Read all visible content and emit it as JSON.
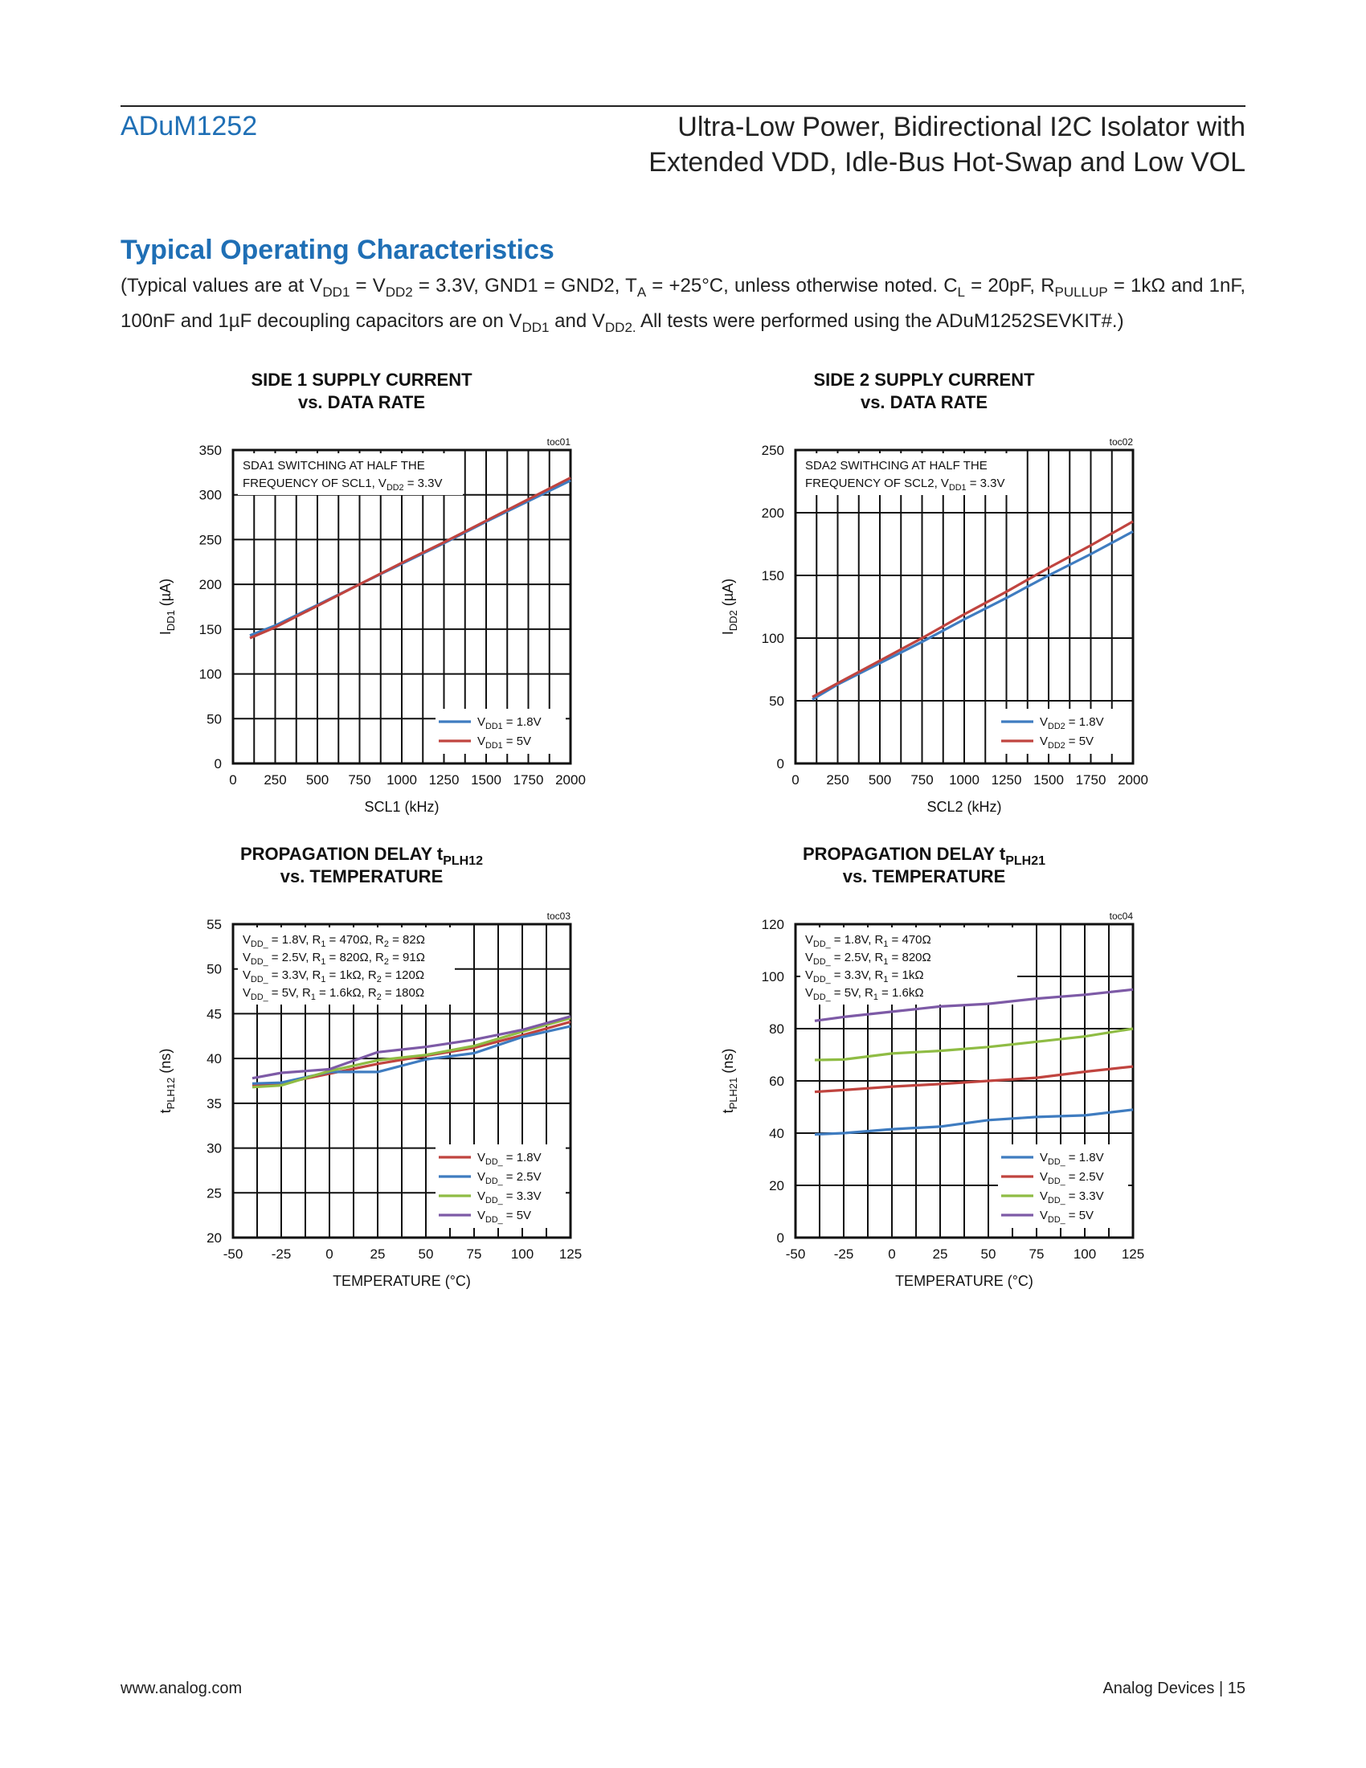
{
  "header": {
    "part_number": "ADuM1252",
    "title_line1": "Ultra-Low Power, Bidirectional I2C Isolator with",
    "title_line2": "Extended VDD, Idle-Bus Hot-Swap and Low VOL"
  },
  "section": {
    "heading": "Typical Operating Characteristics",
    "conditions_parts": [
      "(Typical values are at V",
      "DD1",
      " = V",
      "DD2",
      " = 3.3V, GND1 = GND2, T",
      "A",
      " = +25°C, unless otherwise noted. C",
      "L",
      " = 20pF, R",
      "PULLUP",
      " = 1kΩ and 1nF, 100nF and 1µF decoupling capacitors are on V",
      "DD1",
      " and V",
      "DD2.",
      " All tests were performed using the ADuM1252SEVKIT#.)"
    ]
  },
  "footer": {
    "left": "www.analog.com",
    "right": "Analog Devices | 15"
  },
  "chart_data": [
    {
      "id": "toc01",
      "type": "line",
      "title": [
        "SIDE 1 SUPPLY CURRENT",
        "vs. DATA RATE"
      ],
      "tag": "toc01",
      "xlabel": "SCL1 (kHz)",
      "ylabel": [
        [
          "I",
          ""
        ],
        [
          "DD1",
          "sub"
        ],
        [
          " (µA)",
          ""
        ]
      ],
      "xlim": [
        0,
        2000
      ],
      "ylim": [
        0,
        350
      ],
      "xticks": [
        0,
        250,
        500,
        750,
        1000,
        1250,
        1500,
        1750,
        2000
      ],
      "yticks": [
        0,
        50,
        100,
        150,
        200,
        250,
        300,
        350
      ],
      "grid": true,
      "annotation": [
        [
          [
            "SDA1 SWITCHING AT HALF THE",
            ""
          ]
        ],
        [
          [
            "FREQUENCY OF SCL1, V",
            ""
          ],
          [
            "DD2",
            "sub"
          ],
          [
            " = 3.3V",
            ""
          ]
        ]
      ],
      "legend_position": "bottom-right",
      "series": [
        {
          "name": [
            [
              "V",
              ""
            ],
            [
              "DD1",
              "sub"
            ],
            [
              " = 1.8V",
              ""
            ]
          ],
          "color": "#3f7cc0",
          "x": [
            100,
            250,
            500,
            750,
            1000,
            1250,
            1500,
            1750,
            2000
          ],
          "y": [
            143,
            154,
            177,
            200,
            223,
            246,
            270,
            293,
            316
          ]
        },
        {
          "name": [
            [
              "V",
              ""
            ],
            [
              "DD1",
              "sub"
            ],
            [
              " = 5V",
              ""
            ]
          ],
          "color": "#c0443f",
          "x": [
            100,
            250,
            500,
            750,
            1000,
            1250,
            1500,
            1750,
            2000
          ],
          "y": [
            140,
            152,
            176,
            200,
            224,
            247,
            271,
            295,
            319
          ]
        }
      ]
    },
    {
      "id": "toc02",
      "type": "line",
      "title": [
        "SIDE 2 SUPPLY CURRENT",
        "vs. DATA RATE"
      ],
      "tag": "toc02",
      "xlabel": "SCL2 (kHz)",
      "ylabel": [
        [
          "I",
          ""
        ],
        [
          "DD2",
          "sub"
        ],
        [
          " (µA)",
          ""
        ]
      ],
      "xlim": [
        0,
        2000
      ],
      "ylim": [
        0,
        250
      ],
      "xticks": [
        0,
        250,
        500,
        750,
        1000,
        1250,
        1500,
        1750,
        2000
      ],
      "yticks": [
        0,
        50,
        100,
        150,
        200,
        250
      ],
      "grid": true,
      "annotation": [
        [
          [
            "SDA2 SWITHCING AT HALF THE",
            ""
          ]
        ],
        [
          [
            "FREQUENCY OF SCL2, V",
            ""
          ],
          [
            "DD1",
            "sub"
          ],
          [
            " = 3.3V",
            ""
          ]
        ]
      ],
      "legend_position": "bottom-right",
      "series": [
        {
          "name": [
            [
              "V",
              ""
            ],
            [
              "DD2",
              "sub"
            ],
            [
              " = 1.8V",
              ""
            ]
          ],
          "color": "#3f7cc0",
          "x": [
            100,
            250,
            500,
            750,
            1000,
            1250,
            1500,
            1750,
            2000
          ],
          "y": [
            51,
            63,
            80,
            97,
            115,
            132,
            150,
            167,
            185
          ]
        },
        {
          "name": [
            [
              "V",
              ""
            ],
            [
              "DD2",
              "sub"
            ],
            [
              " = 5V",
              ""
            ]
          ],
          "color": "#c0443f",
          "x": [
            100,
            250,
            500,
            750,
            1000,
            1250,
            1500,
            1750,
            2000
          ],
          "y": [
            53,
            64,
            82,
            100,
            119,
            137,
            156,
            174,
            193
          ]
        }
      ]
    },
    {
      "id": "toc03",
      "type": "line",
      "title": [
        "PROPAGATION DELAY t|PLH12",
        "vs. TEMPERATURE"
      ],
      "tag": "toc03",
      "xlabel": "TEMPERATURE (°C)",
      "ylabel": [
        [
          "t",
          ""
        ],
        [
          "PLH12",
          "sub"
        ],
        [
          " (ns)",
          ""
        ]
      ],
      "xlim": [
        -50,
        125
      ],
      "ylim": [
        20,
        55
      ],
      "xticks": [
        -50,
        -25,
        0,
        25,
        50,
        75,
        100,
        125
      ],
      "yticks": [
        20,
        25,
        30,
        35,
        40,
        45,
        50,
        55
      ],
      "grid": true,
      "annotation": [
        [
          [
            "V",
            ""
          ],
          [
            "DD_",
            "sub"
          ],
          [
            " = 1.8V,  R",
            ""
          ],
          [
            "1",
            "sub"
          ],
          [
            " = 470Ω,    R",
            ""
          ],
          [
            "2",
            "sub"
          ],
          [
            " = 82Ω",
            ""
          ]
        ],
        [
          [
            "V",
            ""
          ],
          [
            "DD_",
            "sub"
          ],
          [
            " = 2.5V,  R",
            ""
          ],
          [
            "1",
            "sub"
          ],
          [
            " = 820Ω,   R",
            ""
          ],
          [
            "2",
            "sub"
          ],
          [
            " = 91Ω",
            ""
          ]
        ],
        [
          [
            "V",
            ""
          ],
          [
            "DD_",
            "sub"
          ],
          [
            " = 3.3V,  R",
            ""
          ],
          [
            "1",
            "sub"
          ],
          [
            " = 1kΩ,      R",
            ""
          ],
          [
            "2",
            "sub"
          ],
          [
            " = 120Ω",
            ""
          ]
        ],
        [
          [
            "V",
            ""
          ],
          [
            "DD_",
            "sub"
          ],
          [
            " = 5V,     R",
            ""
          ],
          [
            "1",
            "sub"
          ],
          [
            " = 1.6kΩ,   R",
            ""
          ],
          [
            "2",
            "sub"
          ],
          [
            " = 180Ω",
            ""
          ]
        ]
      ],
      "legend_position": "bottom-right",
      "series": [
        {
          "name": [
            [
              "V",
              ""
            ],
            [
              "DD_",
              "sub"
            ],
            [
              " = 1.8V",
              ""
            ]
          ],
          "color": "#c0443f",
          "x": [
            -40,
            -25,
            0,
            25,
            50,
            75,
            100,
            125
          ],
          "y": [
            37.0,
            37.2,
            38.3,
            39.4,
            40.3,
            41.2,
            42.6,
            44.1
          ]
        },
        {
          "name": [
            [
              "V",
              ""
            ],
            [
              "DD_",
              "sub"
            ],
            [
              " = 2.5V",
              ""
            ]
          ],
          "color": "#3f7cc0",
          "x": [
            -40,
            -25,
            0,
            25,
            50,
            75,
            100,
            125
          ],
          "y": [
            37.2,
            37.3,
            38.5,
            38.5,
            39.9,
            40.6,
            42.4,
            43.6
          ]
        },
        {
          "name": [
            [
              "V",
              ""
            ],
            [
              "DD_",
              "sub"
            ],
            [
              " = 3.3V",
              ""
            ]
          ],
          "color": "#8fbc44",
          "x": [
            -40,
            -25,
            0,
            25,
            50,
            75,
            100,
            125
          ],
          "y": [
            36.8,
            37.0,
            38.6,
            39.8,
            40.4,
            41.4,
            43.0,
            44.5
          ]
        },
        {
          "name": [
            [
              "V",
              ""
            ],
            [
              "DD_",
              "sub"
            ],
            [
              " = 5V",
              ""
            ]
          ],
          "color": "#7d5aa6",
          "x": [
            -40,
            -25,
            0,
            25,
            50,
            75,
            100,
            125
          ],
          "y": [
            37.8,
            38.4,
            38.8,
            40.7,
            41.3,
            42.1,
            43.2,
            44.7
          ]
        }
      ]
    },
    {
      "id": "toc04",
      "type": "line",
      "title": [
        "PROPAGATION DELAY t|PLH21",
        "vs. TEMPERATURE"
      ],
      "tag": "toc04",
      "xlabel": "TEMPERATURE (°C)",
      "ylabel": [
        [
          "t",
          ""
        ],
        [
          "PLH21",
          "sub"
        ],
        [
          " (ns)",
          ""
        ]
      ],
      "xlim": [
        -50,
        125
      ],
      "ylim": [
        0,
        120
      ],
      "xticks": [
        -50,
        -25,
        0,
        25,
        50,
        75,
        100,
        125
      ],
      "yticks": [
        0,
        20,
        40,
        60,
        80,
        100,
        120
      ],
      "grid": true,
      "annotation": [
        [
          [
            "V",
            ""
          ],
          [
            "DD_",
            "sub"
          ],
          [
            " = 1.8V,  R",
            ""
          ],
          [
            "1",
            "sub"
          ],
          [
            " = 470Ω",
            ""
          ]
        ],
        [
          [
            "V",
            ""
          ],
          [
            "DD_",
            "sub"
          ],
          [
            " = 2.5V,  R",
            ""
          ],
          [
            "1",
            "sub"
          ],
          [
            " = 820Ω",
            ""
          ]
        ],
        [
          [
            "V",
            ""
          ],
          [
            "DD_",
            "sub"
          ],
          [
            " = 3.3V,  R",
            ""
          ],
          [
            "1",
            "sub"
          ],
          [
            " = 1kΩ",
            ""
          ]
        ],
        [
          [
            "V",
            ""
          ],
          [
            "DD_",
            "sub"
          ],
          [
            " = 5V,     R",
            ""
          ],
          [
            "1",
            "sub"
          ],
          [
            " = 1.6kΩ",
            ""
          ]
        ]
      ],
      "legend_position": "bottom-right",
      "series": [
        {
          "name": [
            [
              "V",
              ""
            ],
            [
              "DD_",
              "sub"
            ],
            [
              " = 1.8V",
              ""
            ]
          ],
          "color": "#3f7cc0",
          "x": [
            -40,
            -25,
            0,
            25,
            50,
            75,
            100,
            125
          ],
          "y": [
            39.5,
            40.0,
            41.5,
            42.5,
            45.0,
            46.2,
            46.8,
            49.0
          ]
        },
        {
          "name": [
            [
              "V",
              ""
            ],
            [
              "DD_",
              "sub"
            ],
            [
              " = 2.5V",
              ""
            ]
          ],
          "color": "#c0443f",
          "x": [
            -40,
            -25,
            0,
            25,
            50,
            75,
            100,
            125
          ],
          "y": [
            55.8,
            56.5,
            57.8,
            58.8,
            60.0,
            61.2,
            63.5,
            65.5
          ]
        },
        {
          "name": [
            [
              "V",
              ""
            ],
            [
              "DD_",
              "sub"
            ],
            [
              " = 3.3V",
              ""
            ]
          ],
          "color": "#8fbc44",
          "x": [
            -40,
            -25,
            0,
            25,
            50,
            75,
            100,
            125
          ],
          "y": [
            68.0,
            68.2,
            70.5,
            71.5,
            73.0,
            75.0,
            77.0,
            80.0
          ]
        },
        {
          "name": [
            [
              "V",
              ""
            ],
            [
              "DD_",
              "sub"
            ],
            [
              " = 5V",
              ""
            ]
          ],
          "color": "#7d5aa6",
          "x": [
            -40,
            -25,
            0,
            25,
            50,
            75,
            100,
            125
          ],
          "y": [
            83.0,
            84.5,
            86.5,
            88.5,
            89.5,
            91.5,
            93.0,
            95.0
          ]
        }
      ]
    }
  ]
}
